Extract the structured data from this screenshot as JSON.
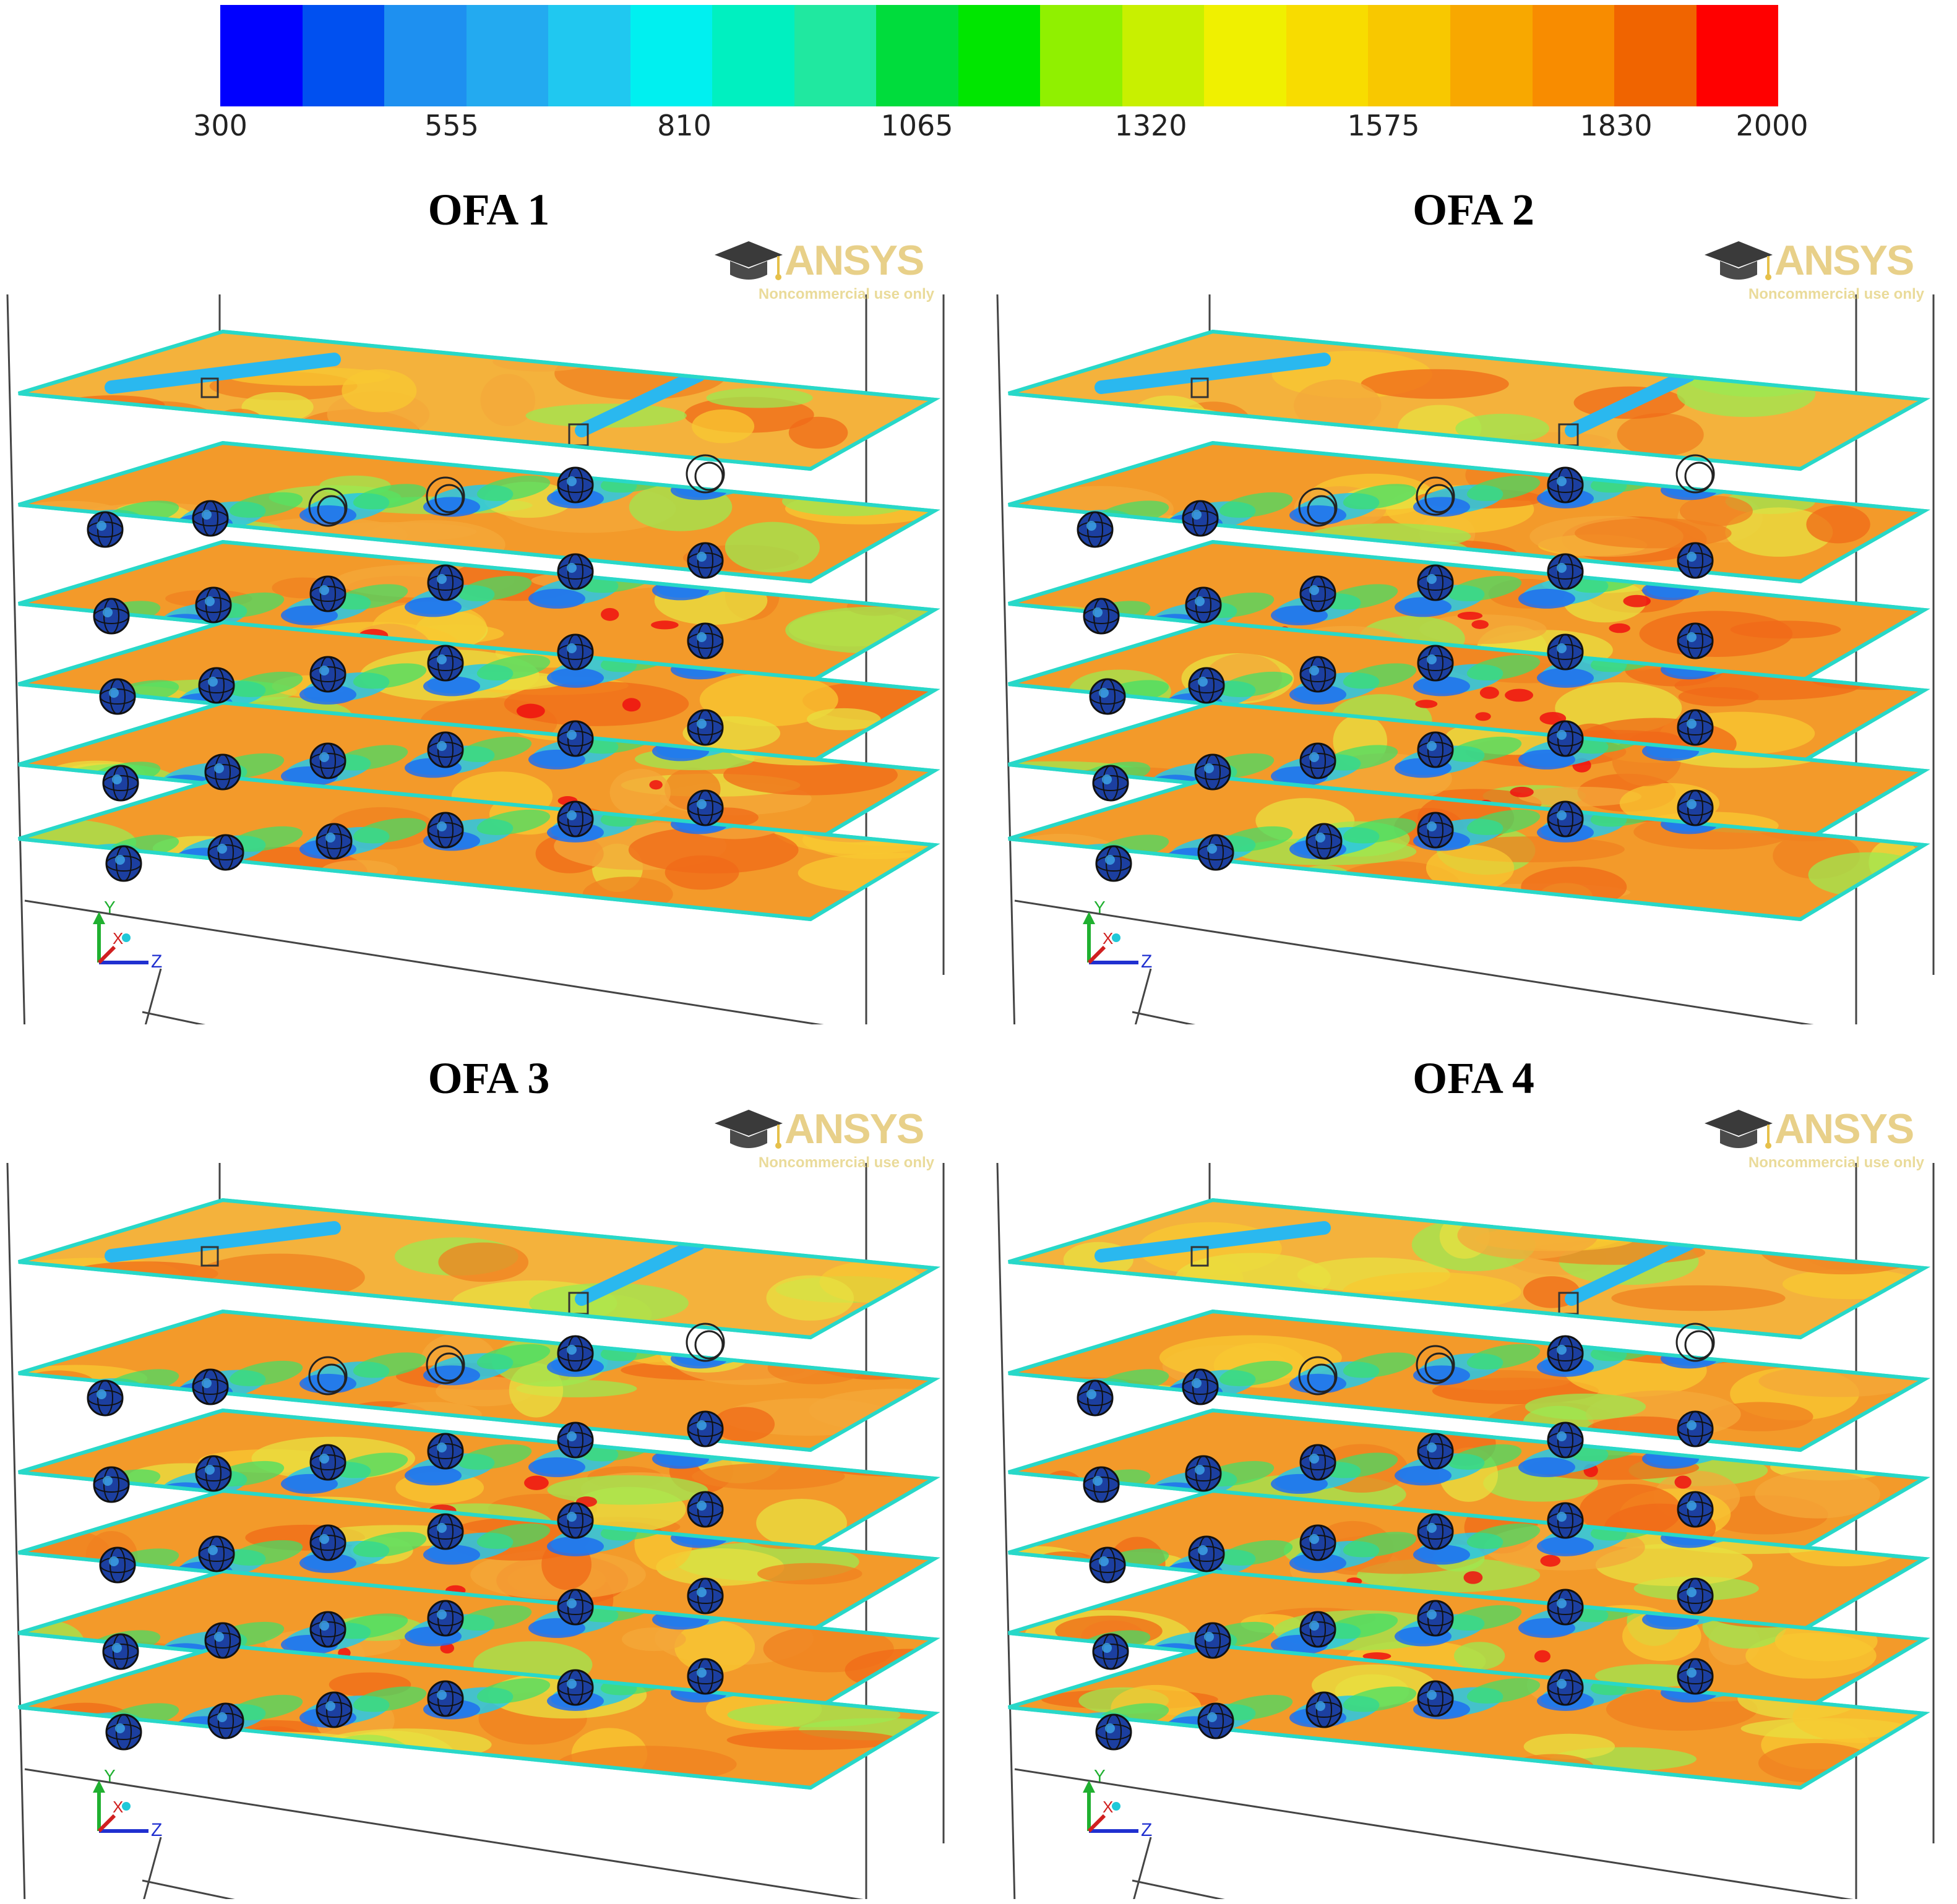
{
  "legend": {
    "ticks": [
      "300",
      "555",
      "810",
      "1065",
      "1320",
      "1575",
      "1830",
      "2000"
    ],
    "colors": [
      "#0000ff",
      "#0050f0",
      "#1e90f0",
      "#23aaf0",
      "#20c8f0",
      "#00f0f0",
      "#00f0c0",
      "#20e8a0",
      "#00dc3c",
      "#00e600",
      "#90f000",
      "#c8f000",
      "#f0f000",
      "#f8dc00",
      "#f8c800",
      "#f8a800",
      "#f88c00",
      "#f06400",
      "#ff0000"
    ]
  },
  "panels": [
    {
      "title": "OFA 1"
    },
    {
      "title": "OFA 2"
    },
    {
      "title": "OFA 3"
    },
    {
      "title": "OFA 4"
    }
  ],
  "watermark": {
    "brand": "ANSYS",
    "subtitle": "Noncommercial use only"
  },
  "axes": {
    "y": "Y",
    "x": "X",
    "z": "Z"
  }
}
